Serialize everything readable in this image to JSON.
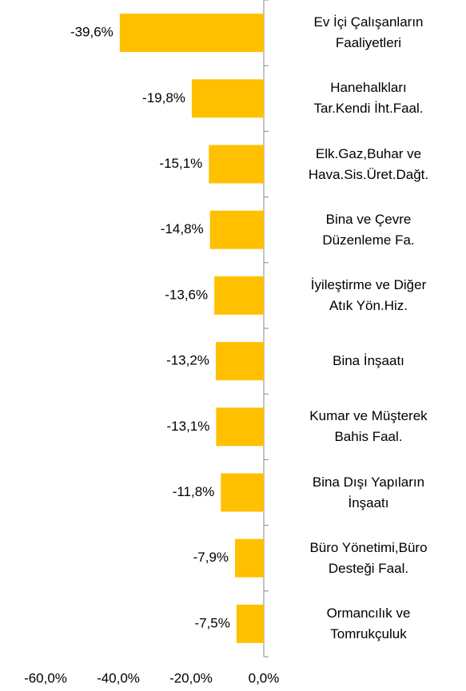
{
  "chart_data": {
    "type": "bar",
    "orientation": "horizontal",
    "color": "#ffc000",
    "categories": [
      "Ev İçi Çalışanların\nFaaliyetleri",
      "Hanehalkları\nTar.Kendi İht.Faal.",
      "Elk.Gaz,Buhar ve\nHava.Sis.Üret.Dağt.",
      "Bina ve Çevre\nDüzenleme Fa.",
      "İyileştirme ve Diğer\nAtık Yön.Hiz.",
      "Bina İnşaatı",
      "Kumar ve Müşterek\nBahis Faal.",
      "Bina Dışı Yapıların\nİnşaatı",
      "Büro Yönetimi,Büro\nDesteği Faal.",
      "Ormancılık ve\nTomrukçuluk"
    ],
    "values": [
      -39.6,
      -19.8,
      -15.1,
      -14.8,
      -13.6,
      -13.2,
      -13.1,
      -11.8,
      -7.9,
      -7.5
    ],
    "value_labels": [
      "-39,6%",
      "-19,8%",
      "-15,1%",
      "-14,8%",
      "-13,6%",
      "-13,2%",
      "-13,1%",
      "-11,8%",
      "-7,9%",
      "-7,5%"
    ],
    "xlim": [
      -60,
      0
    ],
    "xticks": [
      {
        "value": -60,
        "label": "-60,0%"
      },
      {
        "value": -40,
        "label": "-40,0%"
      },
      {
        "value": -20,
        "label": "-20,0%"
      },
      {
        "value": 0,
        "label": "0,0%"
      }
    ]
  }
}
